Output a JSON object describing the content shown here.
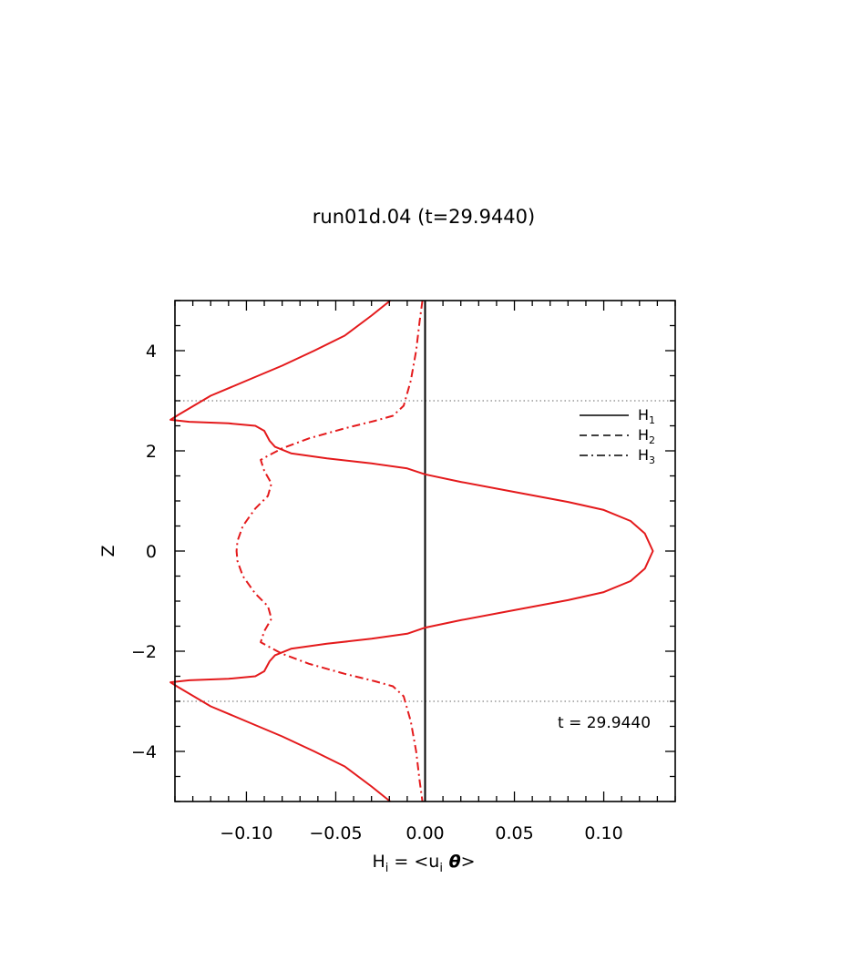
{
  "chart_data": {
    "type": "line",
    "title": "run01d.04 (t=29.9440)",
    "xlabel": {
      "base": "H",
      "sub": "i",
      "eq": " = <u",
      "sub2": "i",
      "theta": "θ",
      "close": ">"
    },
    "ylabel": "Z",
    "xlim": [
      -0.14,
      0.14
    ],
    "ylim": [
      -5,
      5
    ],
    "xticks": [
      -0.1,
      -0.05,
      0.0,
      0.05,
      0.1
    ],
    "xtick_labels": [
      "−0.10",
      "−0.05",
      "0.00",
      "0.05",
      "0.10"
    ],
    "yticks": [
      -4,
      -2,
      0,
      2,
      4
    ],
    "ytick_labels": [
      "−4",
      "−2",
      "0",
      "2",
      "4"
    ],
    "grid": false,
    "legend_position": "right",
    "legend": [
      {
        "base": "H",
        "sub": "1",
        "style": "solid"
      },
      {
        "base": "H",
        "sub": "2",
        "style": "dashed"
      },
      {
        "base": "H",
        "sub": "3",
        "style": "dashdot"
      }
    ],
    "annotation": "t = 29.9440",
    "reference_lines": {
      "horizontal_dotted": [
        3,
        -3
      ],
      "vertical_solid": [
        0
      ]
    },
    "series": [
      {
        "name": "H1",
        "style": "solid",
        "color": "#e41a1c",
        "points": [
          [
            -0.0195,
            5.0
          ],
          [
            -0.03,
            4.7
          ],
          [
            -0.045,
            4.3
          ],
          [
            -0.062,
            4.0
          ],
          [
            -0.08,
            3.7
          ],
          [
            -0.1,
            3.4
          ],
          [
            -0.12,
            3.1
          ],
          [
            -0.138,
            2.72
          ],
          [
            -0.1425,
            2.62
          ],
          [
            -0.132,
            2.58
          ],
          [
            -0.11,
            2.55
          ],
          [
            -0.095,
            2.5
          ],
          [
            -0.09,
            2.4
          ],
          [
            -0.087,
            2.2
          ],
          [
            -0.084,
            2.08
          ],
          [
            -0.075,
            1.95
          ],
          [
            -0.055,
            1.85
          ],
          [
            -0.03,
            1.75
          ],
          [
            -0.01,
            1.65
          ],
          [
            0.0,
            1.53
          ],
          [
            0.02,
            1.38
          ],
          [
            0.05,
            1.18
          ],
          [
            0.08,
            0.98
          ],
          [
            0.1,
            0.82
          ],
          [
            0.115,
            0.6
          ],
          [
            0.123,
            0.35
          ],
          [
            0.1275,
            0.0
          ],
          [
            0.123,
            -0.35
          ],
          [
            0.115,
            -0.6
          ],
          [
            0.1,
            -0.82
          ],
          [
            0.08,
            -0.98
          ],
          [
            0.05,
            -1.18
          ],
          [
            0.02,
            -1.38
          ],
          [
            0.0,
            -1.53
          ],
          [
            -0.01,
            -1.65
          ],
          [
            -0.03,
            -1.75
          ],
          [
            -0.055,
            -1.85
          ],
          [
            -0.075,
            -1.95
          ],
          [
            -0.084,
            -2.08
          ],
          [
            -0.087,
            -2.2
          ],
          [
            -0.09,
            -2.4
          ],
          [
            -0.095,
            -2.5
          ],
          [
            -0.11,
            -2.55
          ],
          [
            -0.132,
            -2.58
          ],
          [
            -0.1425,
            -2.62
          ],
          [
            -0.138,
            -2.72
          ],
          [
            -0.12,
            -3.1
          ],
          [
            -0.1,
            -3.4
          ],
          [
            -0.08,
            -3.7
          ],
          [
            -0.062,
            -4.0
          ],
          [
            -0.045,
            -4.3
          ],
          [
            -0.03,
            -4.7
          ],
          [
            -0.0195,
            -5.0
          ]
        ]
      },
      {
        "name": "H3",
        "style": "dashdot",
        "color": "#e41a1c",
        "points": [
          [
            -0.0015,
            5.0
          ],
          [
            -0.003,
            4.6
          ],
          [
            -0.005,
            4.0
          ],
          [
            -0.008,
            3.4
          ],
          [
            -0.012,
            2.9
          ],
          [
            -0.018,
            2.7
          ],
          [
            -0.028,
            2.6
          ],
          [
            -0.045,
            2.45
          ],
          [
            -0.065,
            2.25
          ],
          [
            -0.08,
            2.05
          ],
          [
            -0.088,
            1.9
          ],
          [
            -0.092,
            1.82
          ],
          [
            -0.09,
            1.6
          ],
          [
            -0.086,
            1.35
          ],
          [
            -0.088,
            1.1
          ],
          [
            -0.095,
            0.85
          ],
          [
            -0.102,
            0.5
          ],
          [
            -0.105,
            0.2
          ],
          [
            -0.1055,
            0.0
          ],
          [
            -0.105,
            -0.2
          ],
          [
            -0.102,
            -0.5
          ],
          [
            -0.095,
            -0.85
          ],
          [
            -0.088,
            -1.1
          ],
          [
            -0.086,
            -1.35
          ],
          [
            -0.09,
            -1.6
          ],
          [
            -0.092,
            -1.82
          ],
          [
            -0.088,
            -1.9
          ],
          [
            -0.08,
            -2.05
          ],
          [
            -0.065,
            -2.25
          ],
          [
            -0.045,
            -2.45
          ],
          [
            -0.028,
            -2.6
          ],
          [
            -0.018,
            -2.7
          ],
          [
            -0.012,
            -2.9
          ],
          [
            -0.008,
            -3.4
          ],
          [
            -0.005,
            -4.0
          ],
          [
            -0.003,
            -4.6
          ],
          [
            -0.0015,
            -5.0
          ]
        ]
      }
    ]
  }
}
